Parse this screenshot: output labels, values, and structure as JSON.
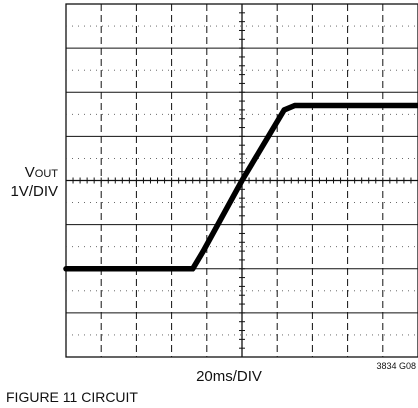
{
  "chart_data": {
    "type": "line",
    "ylabel_main": "V",
    "ylabel_sub": "OUT",
    "ylabel_scale": "1V/DIV",
    "xlabel": "20ms/DIV",
    "figure_code": "3834 G08",
    "caption": "FIGURE 11 CIRCUIT",
    "x_divisions": 10,
    "y_divisions": 8,
    "xlim": [
      0,
      10
    ],
    "ylim": [
      -4,
      4
    ],
    "series": [
      {
        "x": [
          0,
          3.6,
          3.9,
          5.0,
          6.2,
          6.5,
          10
        ],
        "values": [
          -2.0,
          -2.0,
          -1.6,
          0.0,
          1.6,
          1.7,
          1.7
        ]
      }
    ],
    "trace_color": "#000000"
  }
}
